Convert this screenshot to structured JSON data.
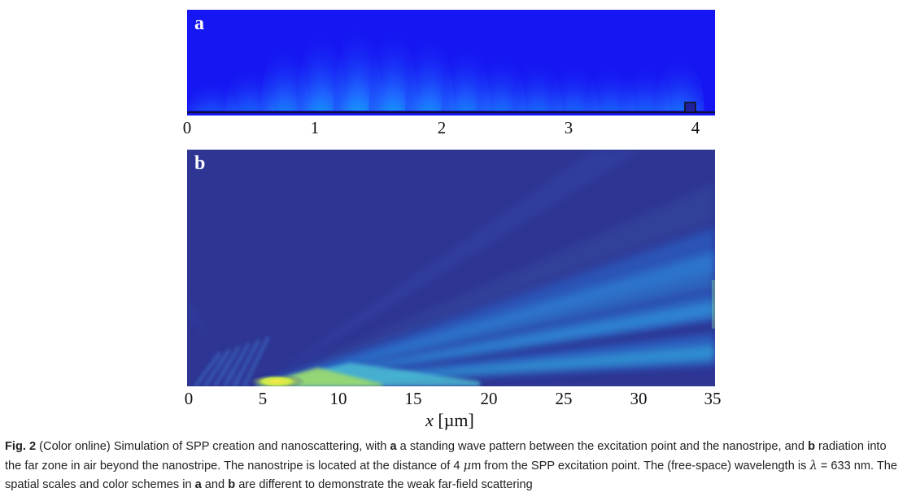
{
  "panel_a": {
    "letter": "a",
    "x_ticks": [
      "0",
      "1",
      "2",
      "3",
      "4"
    ],
    "x_range": [
      0,
      4.2
    ],
    "nanostripe_position_um": 4
  },
  "panel_b": {
    "letter": "b",
    "x_ticks": [
      "0",
      "5",
      "10",
      "15",
      "20",
      "25",
      "30",
      "35"
    ],
    "x_range": [
      0,
      35
    ]
  },
  "axis_label": {
    "variable": "x",
    "unit": "[µm]"
  },
  "caption": {
    "fig_label": "Fig. 2",
    "p1": " (Color online) Simulation of SPP creation and nanoscattering, with ",
    "a1": "a",
    "p2": " a standing wave pattern between the excitation point and the nanostripe, and ",
    "b1": "b",
    "p3": " radiation into the far zone in air beyond the nanostripe. The nanostripe is located at the distance of 4 ",
    "mu": "μ",
    "p4": "m from the SPP excitation point. The (free-space) wavelength is ",
    "lambda": "λ",
    "p5": " = 633 nm. The spatial scales and color schemes in ",
    "a2": "a",
    "p6": " and ",
    "b2": "b",
    "p7": " are different to demonstrate the weak far-field scattering"
  },
  "colors": {
    "panel_a_bg": "#1616f2",
    "panel_b_bg": "#2e3593",
    "hot": "#ff1a00",
    "warm": "#ffe600",
    "cool": "#00e5ff"
  }
}
